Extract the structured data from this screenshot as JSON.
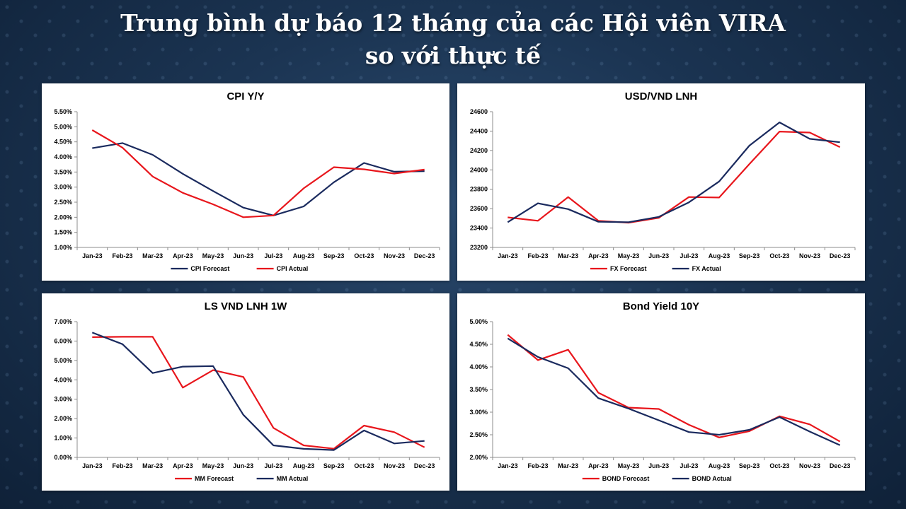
{
  "slide": {
    "title_line1": "Trung bình dự báo 12 tháng của các Hội viên VIRA",
    "title_line2": "so với thực tế"
  },
  "colors": {
    "forecast_red": "#e8161c",
    "actual_navy": "#1a2a5e"
  },
  "chart_data": [
    {
      "id": "cpi",
      "type": "line",
      "title": "CPI Y/Y",
      "categories": [
        "Jan-23",
        "Feb-23",
        "Mar-23",
        "Apr-23",
        "May-23",
        "Jun-23",
        "Jul-23",
        "Aug-23",
        "Sep-23",
        "Oct-23",
        "Nov-23",
        "Dec-23"
      ],
      "ylim": [
        1.0,
        5.5
      ],
      "yticks": [
        "1.00%",
        "1.50%",
        "2.00%",
        "2.50%",
        "3.00%",
        "3.50%",
        "4.00%",
        "4.50%",
        "5.00%",
        "5.50%"
      ],
      "legend": [
        "CPI Forecast",
        "CPI Actual"
      ],
      "series": [
        {
          "name": "CPI Forecast",
          "color": "#1a2a5e",
          "values": [
            4.29,
            4.46,
            4.07,
            3.44,
            2.87,
            2.32,
            2.06,
            2.36,
            3.16,
            3.8,
            3.51,
            3.53
          ]
        },
        {
          "name": "CPI Actual",
          "color": "#e8161c",
          "values": [
            4.89,
            4.31,
            3.35,
            2.81,
            2.43,
            2.0,
            2.06,
            2.96,
            3.66,
            3.59,
            3.45,
            3.58
          ]
        }
      ]
    },
    {
      "id": "fx",
      "type": "line",
      "title": "USD/VND LNH",
      "categories": [
        "Jan-23",
        "Feb-23",
        "Mar-23",
        "Apr-23",
        "May-23",
        "Jun-23",
        "Jul-23",
        "Aug-23",
        "Sep-23",
        "Oct-23",
        "Nov-23",
        "Dec-23"
      ],
      "ylim": [
        23200,
        24600
      ],
      "yticks": [
        "23200",
        "23400",
        "23600",
        "23800",
        "24000",
        "24200",
        "24400",
        "24600"
      ],
      "legend": [
        "FX Forecast",
        "FX Actual"
      ],
      "series": [
        {
          "name": "FX Forecast",
          "color": "#e8161c",
          "values": [
            23510,
            23475,
            23720,
            23475,
            23455,
            23505,
            23720,
            23715,
            24060,
            24395,
            24385,
            24235
          ]
        },
        {
          "name": "FX Actual",
          "color": "#1a2a5e",
          "values": [
            23460,
            23655,
            23595,
            23465,
            23460,
            23515,
            23665,
            23880,
            24250,
            24490,
            24320,
            24285
          ]
        }
      ]
    },
    {
      "id": "mm",
      "type": "line",
      "title": "LS VND LNH 1W",
      "categories": [
        "Jan-23",
        "Feb-23",
        "Mar-23",
        "Apr-23",
        "May-23",
        "Jun-23",
        "Jul-23",
        "Aug-23",
        "Sep-23",
        "Oct-23",
        "Nov-23",
        "Dec-23"
      ],
      "ylim": [
        0.0,
        7.0
      ],
      "yticks": [
        "0.00%",
        "1.00%",
        "2.00%",
        "3.00%",
        "4.00%",
        "5.00%",
        "6.00%",
        "7.00%"
      ],
      "legend": [
        "MM Forecast",
        "MM Actual"
      ],
      "series": [
        {
          "name": "MM Forecast",
          "color": "#e8161c",
          "values": [
            6.2,
            6.22,
            6.22,
            3.6,
            4.5,
            4.15,
            1.52,
            0.62,
            0.45,
            1.64,
            1.3,
            0.52
          ]
        },
        {
          "name": "MM Actual",
          "color": "#1a2a5e",
          "values": [
            6.44,
            5.84,
            4.35,
            4.68,
            4.71,
            2.2,
            0.62,
            0.44,
            0.38,
            1.39,
            0.72,
            0.85
          ]
        }
      ]
    },
    {
      "id": "bond",
      "type": "line",
      "title": "Bond Yield 10Y",
      "categories": [
        "Jan-23",
        "Feb-23",
        "Mar-23",
        "Apr-23",
        "May-23",
        "Jun-23",
        "Jul-23",
        "Aug-23",
        "Sep-23",
        "Oct-23",
        "Nov-23",
        "Dec-23"
      ],
      "ylim": [
        2.0,
        5.0
      ],
      "yticks": [
        "2.00%",
        "2.50%",
        "3.00%",
        "3.50%",
        "4.00%",
        "4.50%",
        "5.00%"
      ],
      "legend": [
        "BOND Forecast",
        "BOND Actual"
      ],
      "series": [
        {
          "name": "BOND Forecast",
          "color": "#e8161c",
          "values": [
            4.71,
            4.15,
            4.38,
            3.43,
            3.1,
            3.07,
            2.72,
            2.44,
            2.58,
            2.91,
            2.73,
            2.35
          ]
        },
        {
          "name": "BOND Actual",
          "color": "#1a2a5e",
          "values": [
            4.63,
            4.22,
            3.97,
            3.31,
            3.08,
            2.82,
            2.56,
            2.5,
            2.61,
            2.89,
            2.57,
            2.27
          ]
        }
      ]
    }
  ]
}
